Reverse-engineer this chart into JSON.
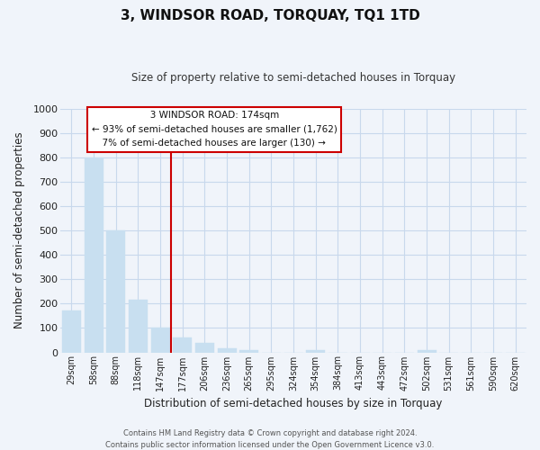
{
  "title": "3, WINDSOR ROAD, TORQUAY, TQ1 1TD",
  "subtitle": "Size of property relative to semi-detached houses in Torquay",
  "xlabel": "Distribution of semi-detached houses by size in Torquay",
  "ylabel": "Number of semi-detached properties",
  "bar_labels": [
    "29sqm",
    "58sqm",
    "88sqm",
    "118sqm",
    "147sqm",
    "177sqm",
    "206sqm",
    "236sqm",
    "265sqm",
    "295sqm",
    "324sqm",
    "354sqm",
    "384sqm",
    "413sqm",
    "443sqm",
    "472sqm",
    "502sqm",
    "531sqm",
    "561sqm",
    "590sqm",
    "620sqm"
  ],
  "bar_values": [
    170,
    800,
    500,
    215,
    100,
    60,
    40,
    18,
    10,
    0,
    0,
    8,
    0,
    0,
    0,
    0,
    10,
    0,
    0,
    0,
    0
  ],
  "annotation_title": "3 WINDSOR ROAD: 174sqm",
  "annotation_line1": "← 93% of semi-detached houses are smaller (1,762)",
  "annotation_line2": "7% of semi-detached houses are larger (130) →",
  "bar_color": "#c8dff0",
  "vline_color": "#cc0000",
  "annotation_box_edge": "#cc0000",
  "annotation_box_face": "#ffffff",
  "ylim": [
    0,
    1000
  ],
  "yticks": [
    0,
    100,
    200,
    300,
    400,
    500,
    600,
    700,
    800,
    900,
    1000
  ],
  "grid_color": "#c8d8ec",
  "bg_color": "#f0f4fa",
  "footer_line1": "Contains HM Land Registry data © Crown copyright and database right 2024.",
  "footer_line2": "Contains public sector information licensed under the Open Government Licence v3.0.",
  "vline_x": 4.5
}
